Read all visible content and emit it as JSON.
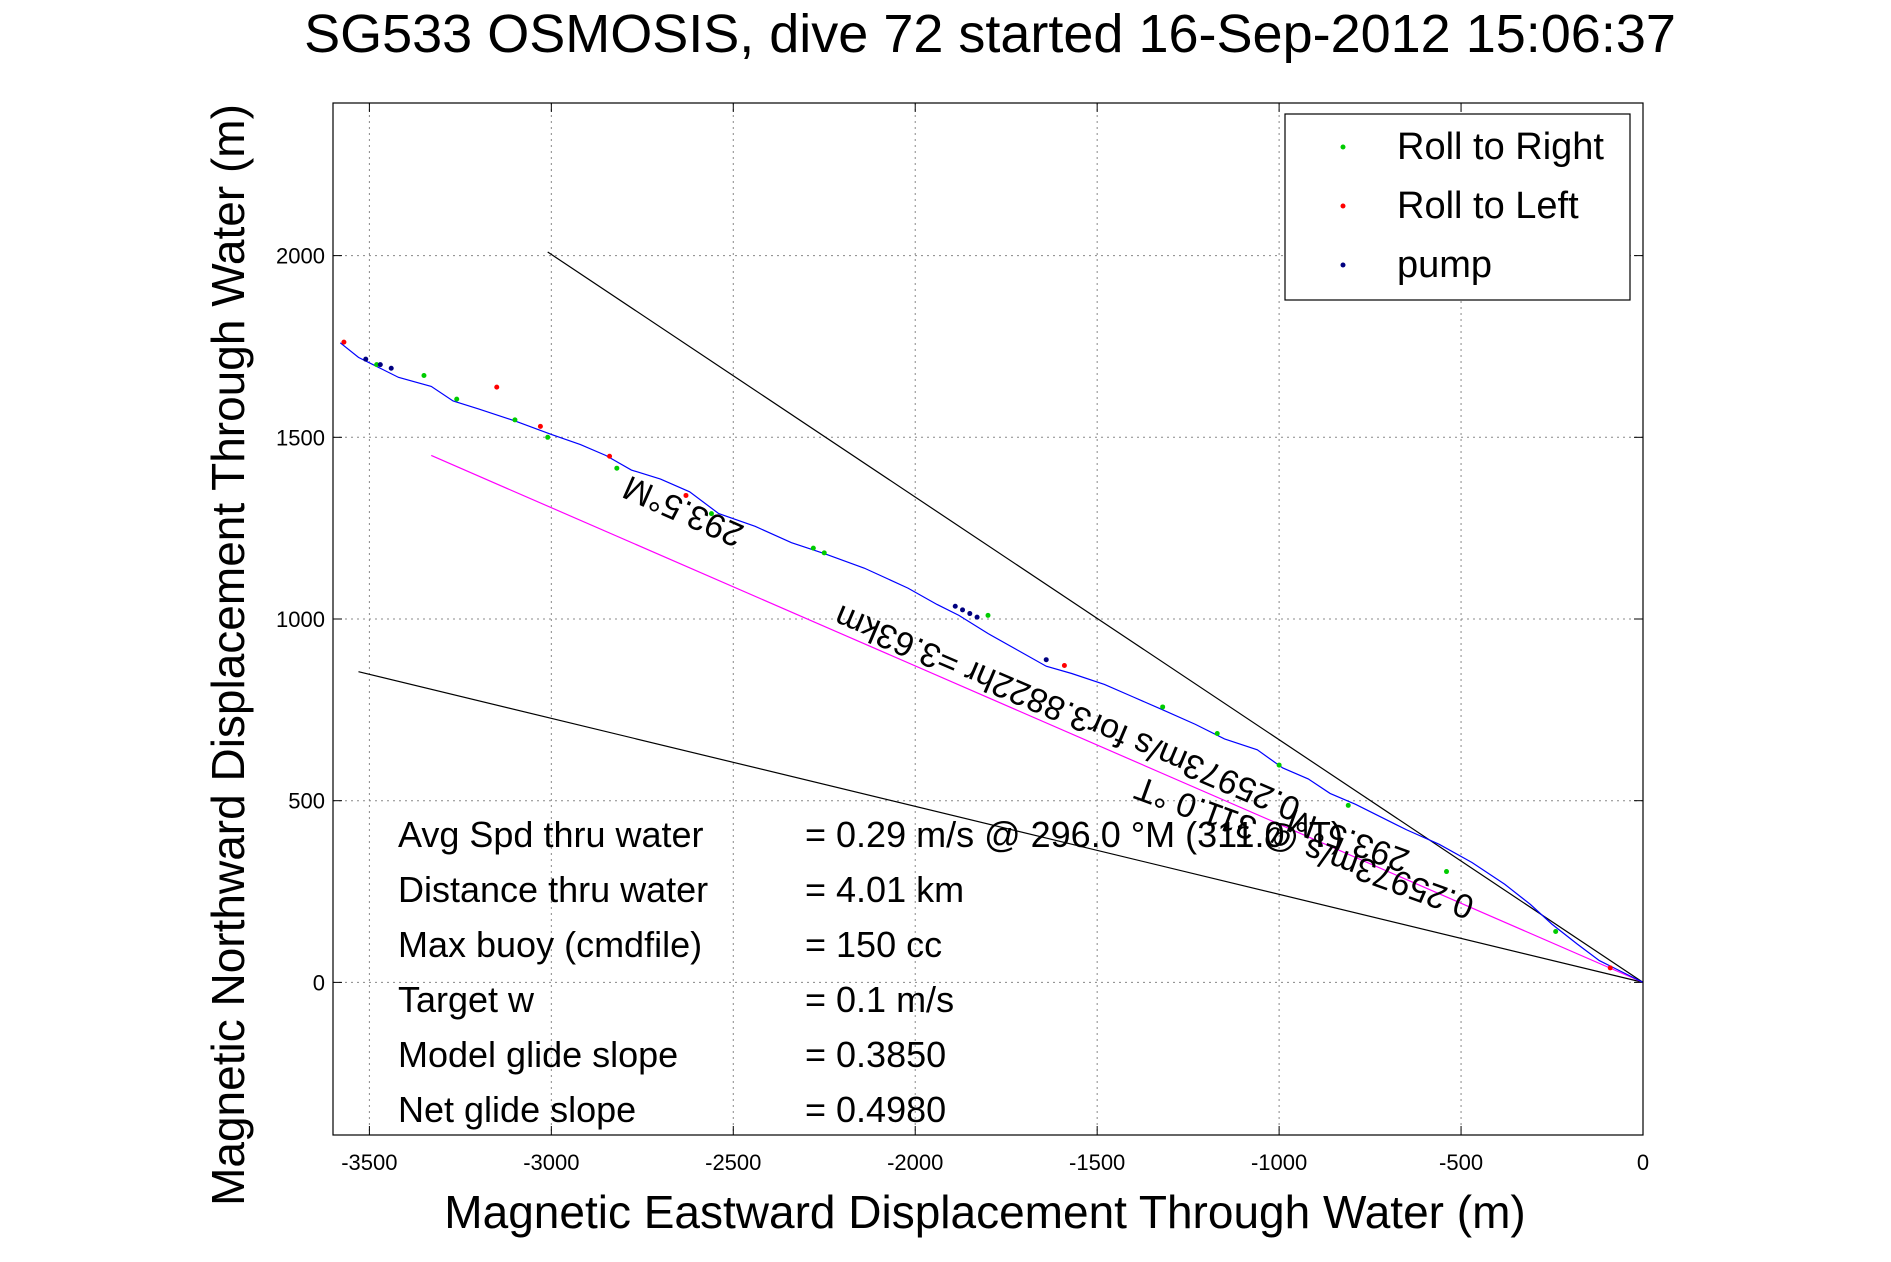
{
  "chart_data": {
    "type": "line",
    "title": "SG533 OSMOSIS, dive 72 started 16-Sep-2012 15:06:37",
    "xlabel": "Magnetic Eastward Displacement Through Water (m)",
    "ylabel": "Magnetic Northward Displacement Through Water (m)",
    "xlim": [
      -3600,
      0
    ],
    "ylim": [
      -420,
      2420
    ],
    "xticks": [
      -3500,
      -3000,
      -2500,
      -2000,
      -1500,
      -1000,
      -500,
      0
    ],
    "yticks": [
      0,
      500,
      1000,
      1500,
      2000
    ],
    "grid": true,
    "legend_position": "top-right",
    "legend": [
      {
        "label": "Roll to Right",
        "color": "#00cc00"
      },
      {
        "label": "Roll to Left",
        "color": "#ff0000"
      },
      {
        "label": "pump",
        "color": "#000080"
      }
    ],
    "series": [
      {
        "role": "track",
        "color": "#0000ff",
        "x": [
          -3580,
          -3530,
          -3480,
          -3420,
          -3330,
          -3270,
          -3200,
          -3100,
          -3000,
          -2920,
          -2850,
          -2780,
          -2700,
          -2620,
          -2540,
          -2440,
          -2340,
          -2250,
          -2140,
          -2020,
          -1940,
          -1880,
          -1800,
          -1720,
          -1640,
          -1570,
          -1480,
          -1400,
          -1320,
          -1230,
          -1150,
          -1060,
          -990,
          -920,
          -860,
          -790,
          -720,
          -650,
          -560,
          -470,
          -380,
          -310,
          -250,
          -180,
          -120,
          -60,
          0
        ],
        "y": [
          1760,
          1720,
          1695,
          1665,
          1640,
          1600,
          1578,
          1545,
          1508,
          1480,
          1450,
          1410,
          1385,
          1350,
          1290,
          1255,
          1210,
          1180,
          1140,
          1085,
          1040,
          1010,
          960,
          915,
          870,
          850,
          820,
          785,
          750,
          710,
          670,
          640,
          590,
          560,
          520,
          490,
          455,
          420,
          380,
          330,
          270,
          215,
          160,
          105,
          60,
          30,
          0
        ]
      }
    ],
    "roll_right_points": {
      "x": [
        -3480,
        -3350,
        -3260,
        -3100,
        -3010,
        -2820,
        -2560,
        -2280,
        -2250,
        -1800,
        -1320,
        -1170,
        -1000,
        -810,
        -540,
        -240
      ],
      "y": [
        1700,
        1670,
        1605,
        1548,
        1500,
        1415,
        1290,
        1195,
        1182,
        1010,
        758,
        685,
        598,
        487,
        305,
        140
      ]
    },
    "roll_left_points": {
      "x": [
        -3570,
        -3150,
        -3030,
        -2840,
        -2630,
        -1590,
        -90
      ],
      "y": [
        1762,
        1638,
        1530,
        1448,
        1340,
        872,
        40
      ]
    },
    "pump_points": {
      "x": [
        -3510,
        -3470,
        -3440,
        -1890,
        -1870,
        -1850,
        -1830,
        -1640
      ],
      "y": [
        1715,
        1700,
        1690,
        1035,
        1025,
        1015,
        1005,
        888
      ]
    },
    "reference_lines": [
      {
        "name": "",
        "color": "#000000",
        "x": [
          -3010,
          0
        ],
        "y": [
          2010,
          0
        ]
      },
      {
        "name": "",
        "color": "#000000",
        "x": [
          -3530,
          0
        ],
        "y": [
          855,
          0
        ]
      },
      {
        "name": "",
        "color": "#ff00ff",
        "x": [
          -3330,
          0
        ],
        "y": [
          1450,
          0
        ]
      }
    ],
    "annotations": [
      {
        "text": "293.5°M",
        "x": -2625,
        "y": 1325,
        "angle": 204
      },
      {
        "text": "0.25973m/s for3.8822hr =3.63km",
        "x": -1570,
        "y": 770,
        "angle": 203
      },
      {
        "text": "293.5°M",
        "x": -800,
        "y": 420,
        "angle": 200
      },
      {
        "text": "0.25973m/s @ 311.0 °T",
        "x": -920,
        "y": 400,
        "angle": 200
      }
    ],
    "stats_text": [
      {
        "label": "Avg Spd thru water",
        "value": "=  0.29 m/s @ 296.0 °M (311.0 °T)"
      },
      {
        "label": "Distance thru water",
        "value": "=  4.01 km"
      },
      {
        "label": "Max buoy (cmdfile)",
        "value": "= 150 cc"
      },
      {
        "label": "Target w",
        "value": "= 0.1 m/s"
      },
      {
        "label": "Model glide slope",
        "value": "= 0.3850"
      },
      {
        "label": "Net glide slope",
        "value": "= 0.4980"
      }
    ]
  }
}
